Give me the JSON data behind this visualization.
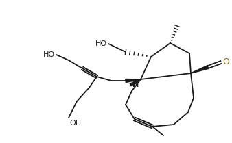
{
  "bg_color": "#ffffff",
  "line_color": "#1a1a1a",
  "bond_lw": 1.3,
  "figsize": [
    3.38,
    2.09
  ],
  "dpi": 100,
  "xlim": [
    0,
    338
  ],
  "ylim": [
    0,
    209
  ]
}
